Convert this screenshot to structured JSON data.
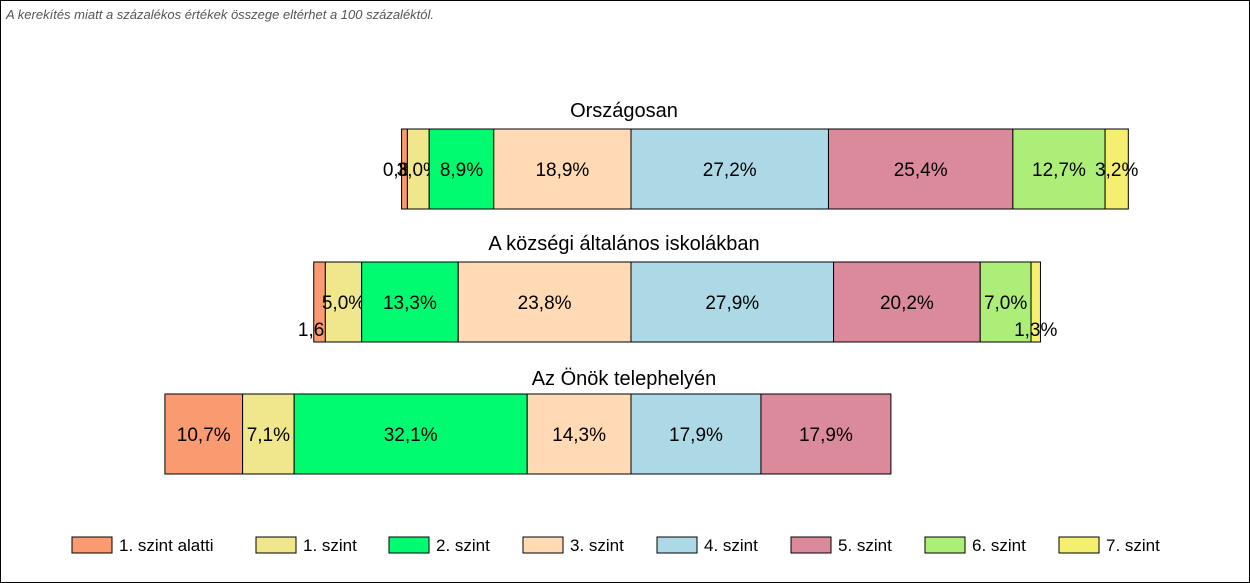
{
  "note": "A kerekítés miatt a  százalékos értékek összege eltérhet a 100 százaléktól.",
  "chart_data": {
    "type": "bar",
    "orientation": "horizontal",
    "stacked": true,
    "level_names": [
      "1. szint alatti",
      "1. szint",
      "2. szint",
      "3. szint",
      "4. szint",
      "5. szint",
      "6. szint",
      "7. szint"
    ],
    "colors": [
      "#FA9A70",
      "#F0E68C",
      "#00FA70",
      "#FFDAB5",
      "#ADD8E6",
      "#DB8A9B",
      "#ACEE78",
      "#F5EF70"
    ],
    "centered_between_levels": [
      3,
      4
    ],
    "legend_position": "bottom",
    "groups": [
      {
        "title": "Országosan",
        "values": [
          0.8,
          3.0,
          8.9,
          18.9,
          27.2,
          25.4,
          12.7,
          3.2
        ],
        "labels": [
          "0,8%",
          "3,0%",
          "8,9%",
          "18,9%",
          "27,2%",
          "25,4%",
          "12,7%",
          "3,2%"
        ]
      },
      {
        "title": "A községi általános iskolákban",
        "values": [
          1.6,
          5.0,
          13.3,
          23.8,
          27.9,
          20.2,
          7.0,
          1.3
        ],
        "labels": [
          "1,6%",
          "5,0%",
          "13,3%",
          "23,8%",
          "27,9%",
          "20,2%",
          "7,0%",
          "1,3%"
        ]
      },
      {
        "title": "Az Önök telephelyén",
        "values": [
          10.7,
          7.1,
          32.1,
          14.3,
          17.9,
          17.9,
          0,
          0
        ],
        "labels": [
          "10,7%",
          "7,1%",
          "32,1%",
          "14,3%",
          "17,9%",
          "17,9%",
          "",
          ""
        ]
      }
    ]
  }
}
